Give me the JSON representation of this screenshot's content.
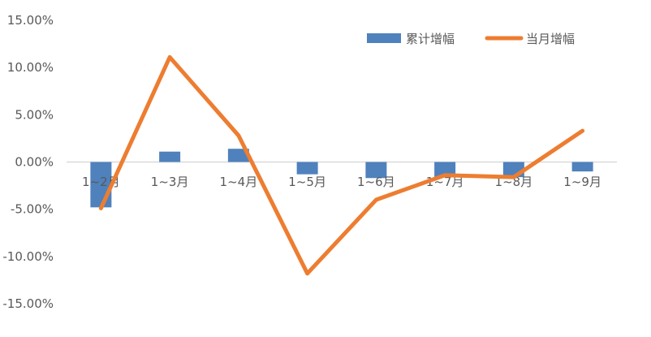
{
  "chart_data": {
    "type": "bar+line",
    "categories": [
      "1~2月",
      "1~3月",
      "1~4月",
      "1~5月",
      "1~6月",
      "1~7月",
      "1~8月",
      "1~9月"
    ],
    "series": [
      {
        "name": "累计增幅",
        "type": "bar",
        "color": "#4F81BD",
        "values": [
          -4.8,
          1.1,
          1.4,
          -1.3,
          -1.7,
          -1.6,
          -1.6,
          -1.0
        ]
      },
      {
        "name": "当月增幅",
        "type": "line",
        "color": "#ED7D31",
        "values": [
          -4.9,
          11.1,
          2.8,
          -11.8,
          -4.0,
          -1.4,
          -1.6,
          3.3
        ]
      }
    ],
    "ylim": [
      -15,
      15
    ],
    "yticks": [
      "15.00%",
      "10.00%",
      "5.00%",
      "0.00%",
      "-5.00%",
      "-10.00%",
      "-15.00%"
    ],
    "grid": false,
    "legend": "top-right"
  }
}
